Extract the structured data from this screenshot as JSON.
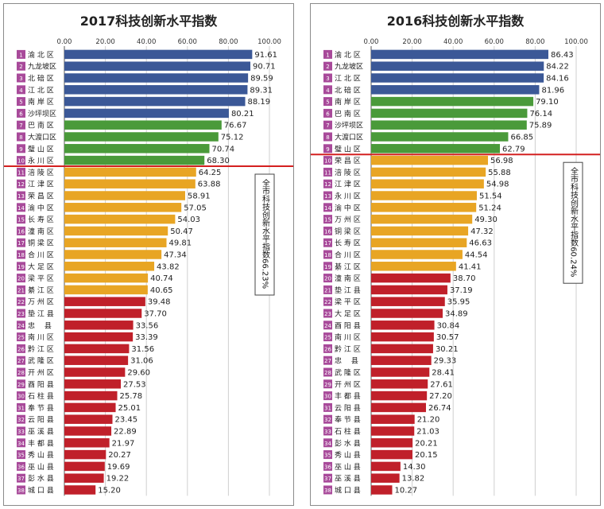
{
  "chart_data": [
    {
      "type": "bar",
      "orientation": "horizontal",
      "title": "2017科技创新水平指数",
      "ticks": [
        "0.00",
        "20.00",
        "40.00",
        "60.00",
        "80.00",
        "100.00"
      ],
      "xlim": [
        0,
        100
      ],
      "grid": true,
      "average_label": "全市科技创新水平指数66.23%",
      "average_after_rank": 10,
      "categories": [
        "渝北区",
        "九龙坡区",
        "北碚区",
        "江北区",
        "南岸区",
        "沙坪坝区",
        "巴南区",
        "大渡口区",
        "璧山区",
        "永川区",
        "涪陵区",
        "江津区",
        "荣昌区",
        "渝中区",
        "长寿区",
        "潼南区",
        "铜梁区",
        "合川区",
        "大足区",
        "梁平区",
        "綦江区",
        "万州区",
        "垫江县",
        "忠县",
        "南川区",
        "黔江区",
        "武隆区",
        "开州区",
        "酉阳县",
        "石柱县",
        "奉节县",
        "云阳县",
        "巫溪县",
        "丰都县",
        "秀山县",
        "巫山县",
        "彭水县",
        "城口县"
      ],
      "display_names": [
        "渝 北 区",
        "九龙坡区",
        "北 碚 区",
        "江 北 区",
        "南 岸 区",
        "沙坪坝区",
        "巴 南 区",
        "大渡口区",
        "璧 山 区",
        "永 川 区",
        "涪 陵 区",
        "江 津 区",
        "荣 昌 区",
        "渝 中 区",
        "长 寿 区",
        "潼 南 区",
        "铜 梁 区",
        "合 川 区",
        "大 足 区",
        "梁 平 区",
        "綦 江 区",
        "万 州 区",
        "垫 江 县",
        "忠　 县",
        "南 川 区",
        "黔 江 区",
        "武 隆 区",
        "开 州 区",
        "酉 阳 县",
        "石 柱 县",
        "奉 节 县",
        "云 阳 县",
        "巫 溪 县",
        "丰 都 县",
        "秀 山 县",
        "巫 山 县",
        "彭 水 县",
        "城 口 县"
      ],
      "values": [
        91.61,
        90.71,
        89.59,
        89.31,
        88.19,
        80.21,
        76.67,
        75.12,
        70.74,
        68.3,
        64.25,
        63.88,
        58.91,
        57.05,
        54.03,
        50.47,
        49.81,
        47.34,
        43.82,
        40.74,
        40.65,
        39.48,
        37.7,
        33.56,
        33.39,
        31.56,
        31.06,
        29.6,
        27.53,
        25.78,
        25.01,
        23.45,
        22.89,
        21.97,
        20.27,
        19.69,
        19.22,
        15.2
      ],
      "value_labels": [
        "91.61",
        "90.71",
        "89.59",
        "89.31",
        "88.19",
        "80.21",
        "76.67",
        "75.12",
        "70.74",
        "68.30",
        "64.25",
        "63.88",
        "58.91",
        "57.05",
        "54.03",
        "50.47",
        "49.81",
        "47.34",
        "43.82",
        "40.74",
        "40.65",
        "39.48",
        "37.70",
        "33.56",
        "33.39",
        "31.56",
        "31.06",
        "29.60",
        "27.53",
        "25.78",
        "25.01",
        "23.45",
        "22.89",
        "21.97",
        "20.27",
        "19.69",
        "19.22",
        "15.20"
      ],
      "tiers": [
        "blue",
        "blue",
        "blue",
        "blue",
        "blue",
        "blue",
        "green",
        "green",
        "green",
        "green",
        "orange",
        "orange",
        "orange",
        "orange",
        "orange",
        "orange",
        "orange",
        "orange",
        "orange",
        "orange",
        "orange",
        "red",
        "red",
        "red",
        "red",
        "red",
        "red",
        "red",
        "red",
        "red",
        "red",
        "red",
        "red",
        "red",
        "red",
        "red",
        "red",
        "red"
      ]
    },
    {
      "type": "bar",
      "orientation": "horizontal",
      "title": "2016科技创新水平指数",
      "ticks": [
        "0.00",
        "20.00",
        "40.00",
        "60.00",
        "80.00",
        "100.00"
      ],
      "xlim": [
        0,
        100
      ],
      "grid": true,
      "average_label": "全市科技创新水平指数60.24%",
      "average_after_rank": 9,
      "categories": [
        "渝北区",
        "九龙坡区",
        "江北区",
        "北碚区",
        "南岸区",
        "巴南区",
        "沙坪坝区",
        "大渡口区",
        "璧山区",
        "荣昌区",
        "涪陵区",
        "江津区",
        "永川区",
        "渝中区",
        "万州区",
        "铜梁区",
        "长寿区",
        "合川区",
        "綦江区",
        "潼南区",
        "垫江县",
        "梁平区",
        "大足区",
        "酉阳县",
        "南川区",
        "黔江区",
        "忠县",
        "武隆区",
        "开州区",
        "丰都县",
        "云阳县",
        "奉节县",
        "石柱县",
        "彭水县",
        "秀山县",
        "巫山县",
        "巫溪县",
        "城口县"
      ],
      "display_names": [
        "渝 北 区",
        "九龙坡区",
        "江 北 区",
        "北 碚 区",
        "南 岸 区",
        "巴 南 区",
        "沙坪坝区",
        "大渡口区",
        "璧 山 区",
        "荣 昌 区",
        "涪 陵 区",
        "江 津 区",
        "永 川 区",
        "渝 中 区",
        "万 州 区",
        "铜 梁 区",
        "长 寿 区",
        "合 川 区",
        "綦 江 区",
        "潼 南 区",
        "垫 江 县",
        "梁 平 区",
        "大 足 区",
        "酉 阳 县",
        "南 川 区",
        "黔 江 区",
        "忠　 县",
        "武 隆 区",
        "开 州 区",
        "丰 都 县",
        "云 阳 县",
        "奉 节 县",
        "石 柱 县",
        "彭 水 县",
        "秀 山 县",
        "巫 山 县",
        "巫 溪 县",
        "城 口 县"
      ],
      "values": [
        86.43,
        84.22,
        84.16,
        81.96,
        79.1,
        76.14,
        75.89,
        66.85,
        62.79,
        56.98,
        55.88,
        54.98,
        51.54,
        51.24,
        49.3,
        47.32,
        46.63,
        44.54,
        41.41,
        38.7,
        37.19,
        35.95,
        34.89,
        30.84,
        30.57,
        30.21,
        29.33,
        28.41,
        27.61,
        27.2,
        26.74,
        21.2,
        21.03,
        20.21,
        20.15,
        14.3,
        13.82,
        10.27
      ],
      "value_labels": [
        "86.43",
        "84.22",
        "84.16",
        "81.96",
        "79.10",
        "76.14",
        "75.89",
        "66.85",
        "62.79",
        "56.98",
        "55.88",
        "54.98",
        "51.54",
        "51.24",
        "49.30",
        "47.32",
        "46.63",
        "44.54",
        "41.41",
        "38.70",
        "37.19",
        "35.95",
        "34.89",
        "30.84",
        "30.57",
        "30.21",
        "29.33",
        "28.41",
        "27.61",
        "27.20",
        "26.74",
        "21.20",
        "21.03",
        "20.21",
        "20.15",
        "14.30",
        "13.82",
        "10.27"
      ],
      "tiers": [
        "blue",
        "blue",
        "blue",
        "blue",
        "green",
        "green",
        "green",
        "green",
        "green",
        "orange",
        "orange",
        "orange",
        "orange",
        "orange",
        "orange",
        "orange",
        "orange",
        "orange",
        "orange",
        "red",
        "red",
        "red",
        "red",
        "red",
        "red",
        "red",
        "red",
        "red",
        "red",
        "red",
        "red",
        "red",
        "red",
        "red",
        "red",
        "red",
        "red",
        "red"
      ]
    }
  ],
  "colors": {
    "blue": "#3b5897",
    "green": "#4a9a3a",
    "orange": "#e8a524",
    "red": "#c0202a",
    "rank_badge": "#a84a9a",
    "divider": "#d42020"
  }
}
